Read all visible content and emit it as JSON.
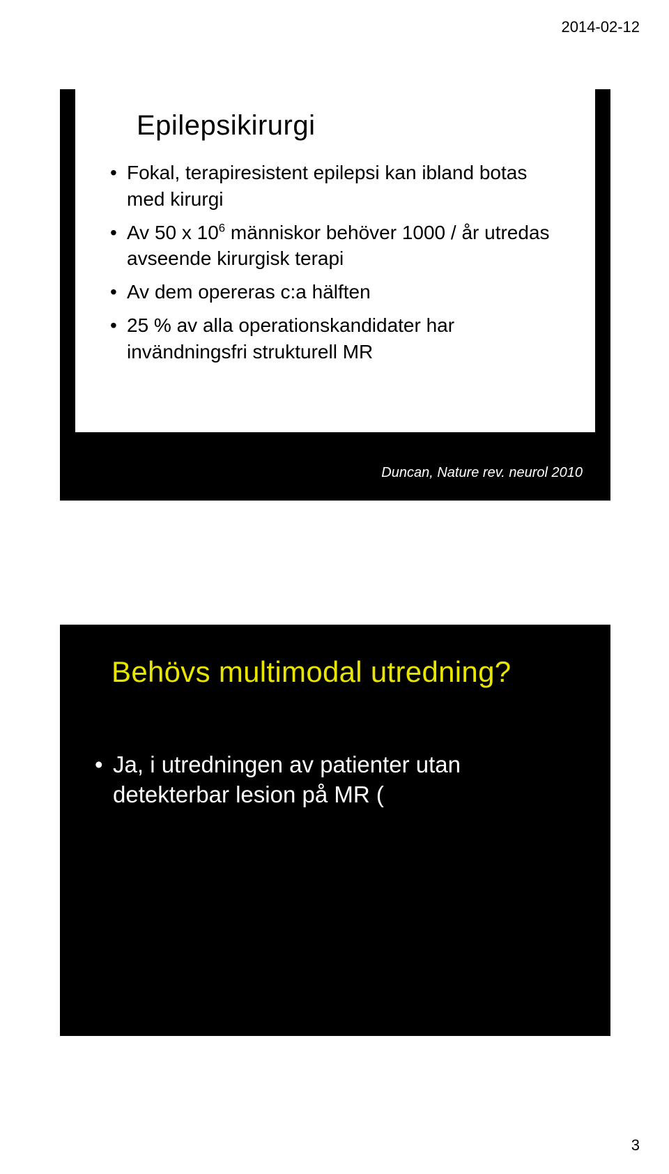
{
  "header": {
    "date": "2014-02-12"
  },
  "slide1": {
    "title": "Epilepsikirurgi",
    "bullets": [
      "Fokal, terapiresistent epilepsi kan ibland botas med kirurgi",
      "Av 50 x 10⁶ människor behöver 1000 / år utredas avseende kirurgisk terapi",
      "Av dem opereras c:a hälften",
      "25 % av alla operationskandidater har invändningsfri strukturell MR"
    ],
    "citation": "Duncan, Nature rev. neurol 2010"
  },
  "slide2": {
    "title": "Behövs multimodal utredning?",
    "bullets": [
      "Ja, i utredningen av patienter utan detekterbar lesion på MR ("
    ]
  },
  "footer": {
    "page_number": "3"
  },
  "colors": {
    "page_bg": "#ffffff",
    "slide_bg": "#000000",
    "card_bg": "#ffffff",
    "title_yellow": "#e8e500",
    "text_black": "#000000",
    "text_white": "#ffffff"
  }
}
